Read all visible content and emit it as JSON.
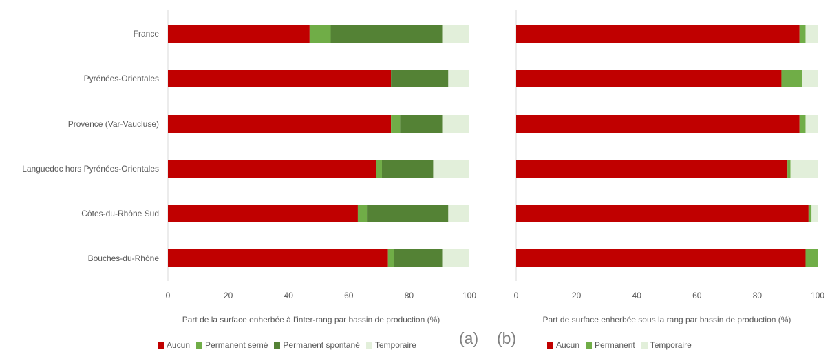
{
  "chart_data": [
    {
      "type": "bar",
      "orientation": "horizontal",
      "stacked": true,
      "categories": [
        "France",
        "Pyrénées-Orientales",
        "Provence (Var-Vaucluse)",
        "Languedoc hors Pyrénées-Orientales",
        "Côtes-du-Rhône Sud",
        "Bouches-du-Rhône"
      ],
      "series": [
        {
          "name": "Aucun",
          "color": "#c00000",
          "values": [
            47,
            74,
            74,
            69,
            63,
            73
          ]
        },
        {
          "name": "Permanent semé",
          "color": "#70ad47",
          "values": [
            7,
            0,
            3,
            2,
            3,
            2
          ]
        },
        {
          "name": "Permanent spontané",
          "color": "#548235",
          "values": [
            37,
            19,
            14,
            17,
            27,
            16
          ]
        },
        {
          "name": "Temporaire",
          "color": "#e2efda",
          "values": [
            9,
            7,
            9,
            12,
            7,
            9
          ]
        }
      ],
      "xlim": [
        0,
        100
      ],
      "xticks": [
        "0",
        "20",
        "40",
        "60",
        "80",
        "100"
      ],
      "xlabel": "Part de la surface enherbée à l'inter-rang par bassin de production (%)",
      "panel_label": "(a)",
      "legend_position": "bottom",
      "grid": false
    },
    {
      "type": "bar",
      "orientation": "horizontal",
      "stacked": true,
      "categories": [
        "France",
        "Pyrénées-Orientales",
        "Provence (Var-Vaucluse)",
        "Languedoc hors Pyrénées-Orientales",
        "Côtes-du-Rhône Sud",
        "Bouches-du-Rhône"
      ],
      "series": [
        {
          "name": "Aucun",
          "color": "#c00000",
          "values": [
            94,
            88,
            94,
            90,
            97,
            96
          ]
        },
        {
          "name": "Permanent",
          "color": "#70ad47",
          "values": [
            2,
            7,
            2,
            1,
            1,
            4
          ]
        },
        {
          "name": "Temporaire",
          "color": "#e2efda",
          "values": [
            4,
            5,
            4,
            9,
            2,
            0
          ]
        }
      ],
      "xlim": [
        0,
        100
      ],
      "xticks": [
        "0",
        "20",
        "40",
        "60",
        "80",
        "100"
      ],
      "xlabel": "Part de surface enherbée sous la rang par bassin de production (%)",
      "panel_label": "(b)",
      "legend_position": "bottom",
      "grid": false
    }
  ]
}
